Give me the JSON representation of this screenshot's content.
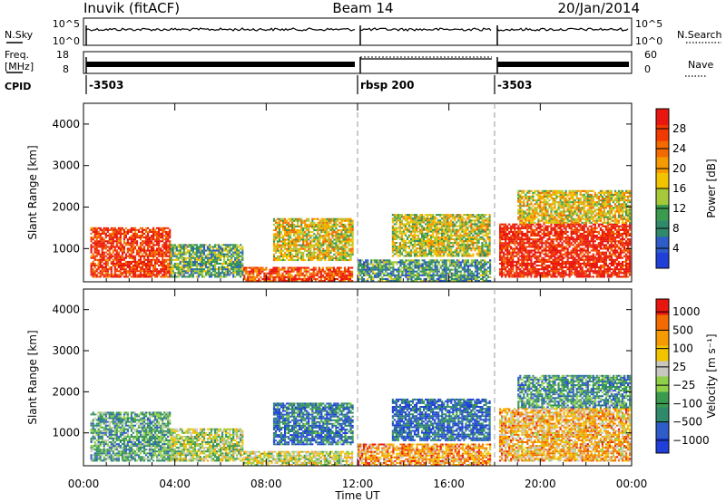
{
  "header": {
    "site": "Inuvik (fitACF)",
    "beam": "Beam 14",
    "date": "20/Jan/2014"
  },
  "strips": {
    "nsky_label": "N.Sky",
    "nsky_ticks": [
      "10^5",
      "10^0"
    ],
    "nsearch_label": "N.Search",
    "nsearch_ticks": [
      "10^5",
      "10^0"
    ],
    "freq_label": "Freq.",
    "freq_unit": "[MHz]",
    "freq_ticks": [
      "18",
      "8"
    ],
    "nave_label": "Nave",
    "nave_ticks": [
      "60",
      "0"
    ],
    "cpid_label": "CPID",
    "cpid_segments": [
      {
        "label": "-3503",
        "start_hr": 0,
        "end_hr": 12
      },
      {
        "label": "rbsp 200",
        "start_hr": 12,
        "end_hr": 18
      },
      {
        "label": "-3503",
        "start_hr": 18,
        "end_hr": 24
      }
    ]
  },
  "chart_data": [
    {
      "type": "heatmap",
      "name": "power",
      "ylabel": "Slant Range [km]",
      "xlabel": "Time UT",
      "xlim": [
        0,
        24
      ],
      "ylim": [
        200,
        4500
      ],
      "x_ticks": [
        "00:00",
        "04:00",
        "08:00",
        "12:00",
        "16:00",
        "20:00",
        "00:00"
      ],
      "y_ticks": [
        1000,
        2000,
        3000,
        4000
      ],
      "colorbar": {
        "label": "Power [dB]",
        "ticks": [
          "4",
          "8",
          "12",
          "16",
          "20",
          "24",
          "28"
        ],
        "colors": [
          "#1f3fd8",
          "#2e5cc8",
          "#2f8a6c",
          "#3a9b4f",
          "#a6c93a",
          "#f2c400",
          "#f59a00",
          "#f26a00",
          "#f23a00",
          "#e8160e"
        ]
      },
      "mode_changes_hr": [
        12,
        18
      ],
      "echo_regions": [
        {
          "t0": 0.3,
          "t1": 3.8,
          "r0": 300,
          "r1": 1500,
          "level": 0.9
        },
        {
          "t0": 3.8,
          "t1": 7.0,
          "r0": 300,
          "r1": 1100,
          "level": 0.35
        },
        {
          "t0": 7.0,
          "t1": 11.8,
          "r0": 200,
          "r1": 550,
          "level": 0.85
        },
        {
          "t0": 8.3,
          "t1": 11.8,
          "r0": 700,
          "r1": 1700,
          "level": 0.55
        },
        {
          "t0": 13.5,
          "t1": 17.8,
          "r0": 800,
          "r1": 1800,
          "level": 0.5
        },
        {
          "t0": 12.0,
          "t1": 17.8,
          "r0": 200,
          "r1": 700,
          "level": 0.3
        },
        {
          "t0": 18.2,
          "t1": 23.9,
          "r0": 300,
          "r1": 1600,
          "level": 0.95
        },
        {
          "t0": 19.0,
          "t1": 23.9,
          "r0": 1600,
          "r1": 2400,
          "level": 0.55
        }
      ]
    },
    {
      "type": "heatmap",
      "name": "velocity",
      "ylabel": "Slant Range [km]",
      "xlabel": "Time UT",
      "xlim": [
        0,
        24
      ],
      "ylim": [
        200,
        4500
      ],
      "x_ticks": [
        "00:00",
        "04:00",
        "08:00",
        "12:00",
        "16:00",
        "20:00",
        "00:00"
      ],
      "y_ticks": [
        1000,
        2000,
        3000,
        4000
      ],
      "colorbar": {
        "label": "Velocity [m s⁻¹]",
        "ticks": [
          "1000",
          "500",
          "100",
          "25",
          "−25",
          "−100",
          "−500",
          "−1000"
        ],
        "colors": [
          "#1f3fd8",
          "#2e5cc8",
          "#2f8a6c",
          "#3a9b4f",
          "#8fd04a",
          "#c8c8c0",
          "#f2c400",
          "#f59a00",
          "#f26a00",
          "#e8160e"
        ]
      },
      "mode_changes_hr": [
        12,
        18
      ],
      "echo_regions": [
        {
          "t0": 0.3,
          "t1": 3.8,
          "r0": 300,
          "r1": 1500,
          "level": 0.35
        },
        {
          "t0": 3.8,
          "t1": 7.0,
          "r0": 300,
          "r1": 1100,
          "level": 0.5
        },
        {
          "t0": 7.0,
          "t1": 11.8,
          "r0": 200,
          "r1": 550,
          "level": 0.55
        },
        {
          "t0": 8.3,
          "t1": 11.8,
          "r0": 700,
          "r1": 1700,
          "level": 0.2
        },
        {
          "t0": 13.5,
          "t1": 17.8,
          "r0": 800,
          "r1": 1800,
          "level": 0.15
        },
        {
          "t0": 12.0,
          "t1": 17.8,
          "r0": 200,
          "r1": 700,
          "level": 0.75
        },
        {
          "t0": 18.2,
          "t1": 23.9,
          "r0": 300,
          "r1": 1600,
          "level": 0.7
        },
        {
          "t0": 19.0,
          "t1": 23.9,
          "r0": 1600,
          "r1": 2400,
          "level": 0.3
        }
      ]
    }
  ]
}
